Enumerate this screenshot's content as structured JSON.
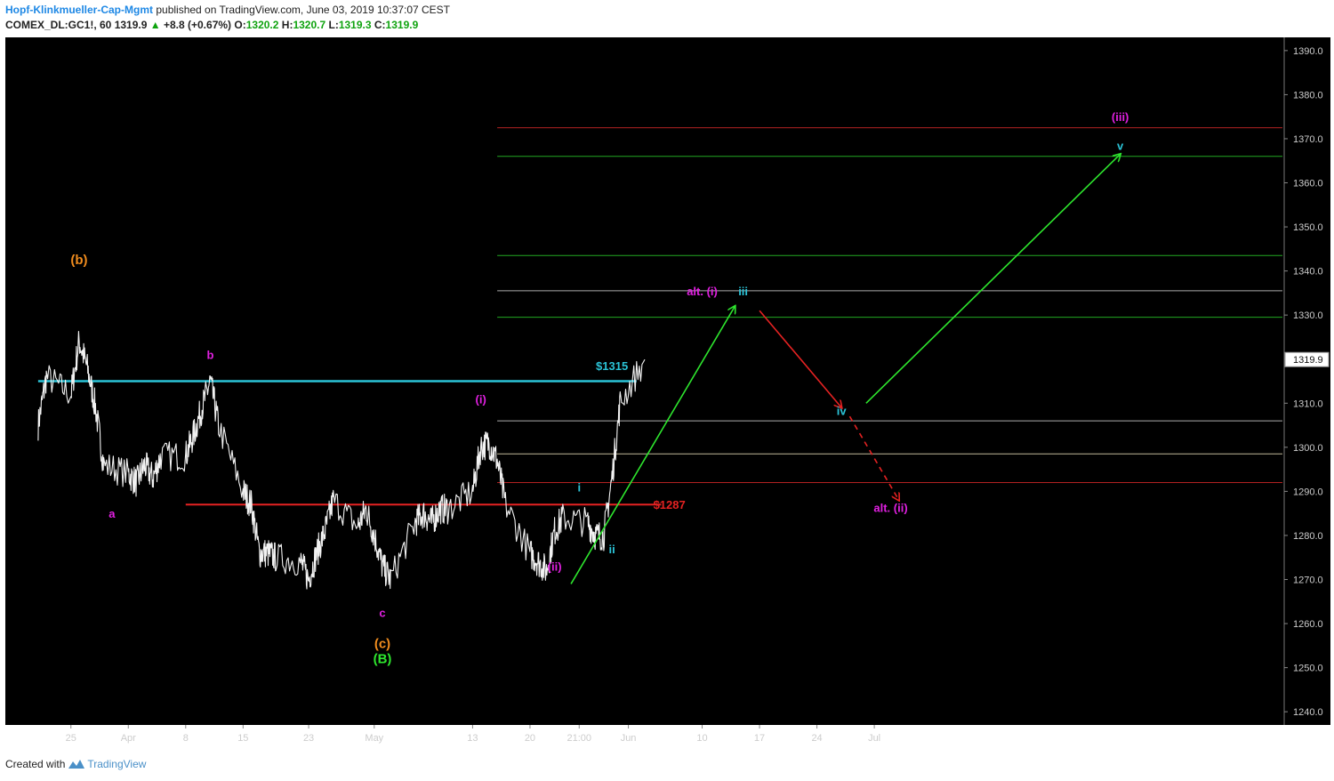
{
  "header": {
    "author": "Hopf-Klinkmueller-Cap-Mgmt",
    "published": "published on TradingView.com, June 03, 2019 10:37:07 CEST",
    "symbol": "COMEX_DL:GC1!, 60",
    "last": "1319.9",
    "change": "+8.8 (+0.67%)",
    "o_label": "O:",
    "o": "1320.2",
    "h_label": "H:",
    "h": "1320.7",
    "l_label": "L:",
    "l": "1319.3",
    "c_label": "C:",
    "c": "1319.9"
  },
  "footer": {
    "created": "Created with",
    "brand": "TradingView"
  },
  "chart_data": {
    "type": "line",
    "series": [
      {
        "values_desc": "hourly gold futures closes",
        "x": [
          "2019-03-21",
          "2019-03-22",
          "2019-03-25",
          "2019-03-26",
          "2019-03-27",
          "2019-03-28",
          "2019-03-29",
          "2019-04-01",
          "2019-04-02",
          "2019-04-03",
          "2019-04-04",
          "2019-04-05",
          "2019-04-08",
          "2019-04-09",
          "2019-04-10",
          "2019-04-11",
          "2019-04-12",
          "2019-04-15",
          "2019-04-16",
          "2019-04-17",
          "2019-04-18",
          "2019-04-19",
          "2019-04-22",
          "2019-04-23",
          "2019-04-24",
          "2019-04-25",
          "2019-04-26",
          "2019-04-29",
          "2019-04-30",
          "2019-05-01",
          "2019-05-02",
          "2019-05-03",
          "2019-05-06",
          "2019-05-07",
          "2019-05-08",
          "2019-05-09",
          "2019-05-10",
          "2019-05-13",
          "2019-05-14",
          "2019-05-15",
          "2019-05-16",
          "2019-05-17",
          "2019-05-20",
          "2019-05-21",
          "2019-05-22",
          "2019-05-23",
          "2019-05-24",
          "2019-05-27",
          "2019-05-28",
          "2019-05-29",
          "2019-05-30",
          "2019-05-31",
          "2019-06-03"
        ],
        "y": [
          1305,
          1316,
          1312,
          1324,
          1318,
          1309,
          1296,
          1294,
          1292,
          1296,
          1293,
          1298,
          1298,
          1303,
          1309,
          1315,
          1305,
          1290,
          1287,
          1276,
          1276,
          1275,
          1274,
          1270,
          1276,
          1281,
          1288,
          1282,
          1286,
          1280,
          1273,
          1270,
          1283,
          1285,
          1283,
          1286,
          1286,
          1290,
          1300,
          1301,
          1297,
          1287,
          1276,
          1274,
          1272,
          1281,
          1284,
          1283,
          1280,
          1280,
          1293,
          1310,
          1319.9
        ]
      }
    ],
    "hlines": [
      {
        "price": 1372.5,
        "color": "#b22222"
      },
      {
        "price": 1366,
        "color": "#22a822"
      },
      {
        "price": 1343.5,
        "color": "#22a822"
      },
      {
        "price": 1335.5,
        "color": "#aaaaaa"
      },
      {
        "price": 1329.5,
        "color": "#22a822"
      },
      {
        "price": 1315,
        "color": "#2bc4d8",
        "label": "$1315"
      },
      {
        "price": 1306,
        "color": "#aaaaaa"
      },
      {
        "price": 1298.5,
        "color": "#bfb899"
      },
      {
        "price": 1292,
        "color": "#b22222"
      },
      {
        "price": 1287,
        "color": "#e52222",
        "label": "$1287"
      }
    ],
    "projection": [
      {
        "from": [
          "2019-05-25",
          1269
        ],
        "to": [
          "2019-06-14",
          1332
        ],
        "color": "#2ee62e",
        "style": "solid"
      },
      {
        "from": [
          "2019-06-17",
          1331
        ],
        "to": [
          "2019-06-27",
          1309
        ],
        "color": "#e52222",
        "style": "solid"
      },
      {
        "from": [
          "2019-06-28",
          1307
        ],
        "to": [
          "2019-07-04",
          1288
        ],
        "color": "#e52222",
        "style": "dashed"
      },
      {
        "from": [
          "2019-06-30",
          1310
        ],
        "to": [
          "2019-07-31",
          1366.5
        ],
        "color": "#2ee62e",
        "style": "solid"
      }
    ],
    "annotations": [
      {
        "text": "(b)",
        "x": "2019-03-26",
        "y": 1341.5,
        "color": "#f08c1e"
      },
      {
        "text": "a",
        "x": "2019-03-30",
        "y": 1284,
        "color": "#e020e0"
      },
      {
        "text": "b",
        "x": "2019-04-11",
        "y": 1320,
        "color": "#e020e0"
      },
      {
        "text": "c",
        "x": "2019-05-02",
        "y": 1261.5,
        "color": "#e020e0"
      },
      {
        "text": "(c)",
        "x": "2019-05-02",
        "y": 1254.5,
        "color": "#f08c1e"
      },
      {
        "text": "(B)",
        "x": "2019-05-02",
        "y": 1251,
        "color": "#2ee62e"
      },
      {
        "text": "(i)",
        "x": "2019-05-14",
        "y": 1310,
        "color": "#e020e0"
      },
      {
        "text": "(ii)",
        "x": "2019-05-23",
        "y": 1272,
        "color": "#e020e0"
      },
      {
        "text": "i",
        "x": "2019-05-26",
        "y": 1290,
        "color": "#2bc4d8"
      },
      {
        "text": "ii",
        "x": "2019-05-30",
        "y": 1276,
        "color": "#2bc4d8"
      },
      {
        "text": "$1315",
        "x": "2019-05-30",
        "y": 1317.5,
        "color": "#2bc4d8"
      },
      {
        "text": "$1287",
        "x": "2019-06-06",
        "y": 1286,
        "color": "#e52222"
      },
      {
        "text": "alt. (i)",
        "x": "2019-06-10",
        "y": 1334.5,
        "color": "#e020e0"
      },
      {
        "text": "iii",
        "x": "2019-06-15",
        "y": 1334.5,
        "color": "#2bc4d8"
      },
      {
        "text": "iv",
        "x": "2019-06-27",
        "y": 1307.3,
        "color": "#2bc4d8"
      },
      {
        "text": "alt. (ii)",
        "x": "2019-07-03",
        "y": 1285.3,
        "color": "#e020e0"
      },
      {
        "text": "(iii)",
        "x": "2019-07-31",
        "y": 1374,
        "color": "#e020e0"
      },
      {
        "text": "v",
        "x": "2019-07-31",
        "y": 1367.5,
        "color": "#2bc4d8"
      }
    ],
    "x_ticks": [
      {
        "label": "25",
        "x": "2019-03-25"
      },
      {
        "label": "Apr",
        "x": "2019-04-01"
      },
      {
        "label": "8",
        "x": "2019-04-08"
      },
      {
        "label": "15",
        "x": "2019-04-15"
      },
      {
        "label": "23",
        "x": "2019-04-23"
      },
      {
        "label": "May",
        "x": "2019-05-01"
      },
      {
        "label": "13",
        "x": "2019-05-13"
      },
      {
        "label": "20",
        "x": "2019-05-20"
      },
      {
        "label": "21:00",
        "x": "2019-05-26"
      },
      {
        "label": "Jun",
        "x": "2019-06-01"
      },
      {
        "label": "10",
        "x": "2019-06-10"
      },
      {
        "label": "17",
        "x": "2019-06-17"
      },
      {
        "label": "24",
        "x": "2019-06-24"
      },
      {
        "label": "Jul",
        "x": "2019-07-01"
      }
    ],
    "y_ticks": [
      "1390.0",
      "1380.0",
      "1370.0",
      "1360.0",
      "1350.0",
      "1340.0",
      "1330.0",
      "1320.0",
      "1310.0",
      "1300.0",
      "1290.0",
      "1280.0",
      "1270.0",
      "1260.0",
      "1250.0",
      "1240.0"
    ],
    "last_price_label": "1319.9",
    "ylim": [
      1237,
      1393
    ],
    "xlim": [
      "2019-03-17",
      "2019-08-20"
    ],
    "grid": false,
    "background": "#000000"
  }
}
